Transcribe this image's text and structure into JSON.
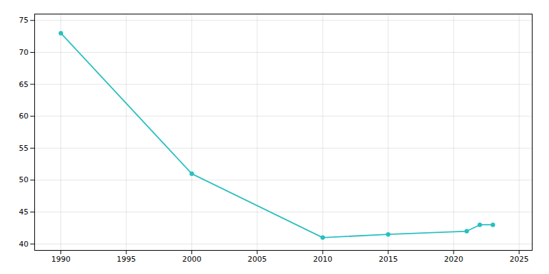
{
  "chart_data": {
    "type": "line",
    "x": [
      1990,
      2000,
      2010,
      2015,
      2021,
      2022,
      2023
    ],
    "values": [
      73.0,
      51.0,
      41.0,
      41.5,
      42.0,
      43.0,
      43.0
    ],
    "color": "#2abfbf",
    "marker": "circle",
    "xlim": [
      1988,
      2026
    ],
    "ylim": [
      39,
      76
    ],
    "xticks": [
      1990,
      1995,
      2000,
      2005,
      2010,
      2015,
      2020,
      2025
    ],
    "yticks": [
      40,
      45,
      50,
      55,
      60,
      65,
      70,
      75
    ],
    "grid": true
  }
}
